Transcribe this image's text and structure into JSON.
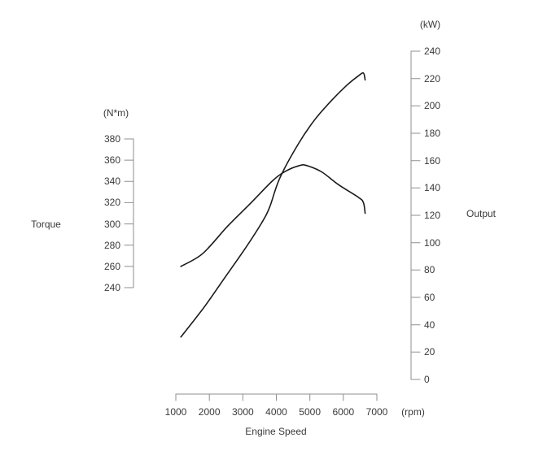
{
  "chart_data": {
    "type": "line",
    "title": "",
    "x_axis": {
      "label": "Engine Speed",
      "unit": "(rpm)",
      "range": [
        1000,
        7000
      ],
      "ticks": [
        1000,
        2000,
        3000,
        4000,
        5000,
        6000,
        7000
      ]
    },
    "y_left": {
      "label": "Torque",
      "unit": "(N*m)",
      "range": [
        240,
        380
      ],
      "ticks": [
        380,
        360,
        340,
        320,
        300,
        280,
        260,
        240
      ]
    },
    "y_right": {
      "label": "Output",
      "unit": "(kW)",
      "range": [
        0,
        240
      ],
      "ticks": [
        240,
        220,
        200,
        180,
        160,
        140,
        120,
        100,
        80,
        60,
        40,
        20,
        0
      ]
    },
    "grid": false,
    "legend": "none",
    "series": [
      {
        "name": "Torque",
        "axis": "left",
        "unit": "N*m",
        "points": [
          [
            1150,
            260
          ],
          [
            1800,
            272
          ],
          [
            2550,
            298
          ],
          [
            3250,
            320
          ],
          [
            3900,
            341
          ],
          [
            4300,
            350
          ],
          [
            4700,
            355
          ],
          [
            4900,
            355
          ],
          [
            5350,
            349
          ],
          [
            5850,
            337
          ],
          [
            6450,
            325
          ],
          [
            6600,
            320
          ],
          [
            6650,
            310
          ]
        ]
      },
      {
        "name": "Output",
        "axis": "right",
        "unit": "kW",
        "points": [
          [
            1150,
            31
          ],
          [
            1850,
            53
          ],
          [
            2450,
            74
          ],
          [
            3050,
            95
          ],
          [
            3550,
            114
          ],
          [
            3800,
            126
          ],
          [
            4100,
            147
          ],
          [
            4650,
            172
          ],
          [
            5150,
            190
          ],
          [
            5650,
            204
          ],
          [
            6100,
            215
          ],
          [
            6450,
            222
          ],
          [
            6600,
            224
          ],
          [
            6650,
            219
          ]
        ]
      }
    ],
    "colors": {
      "curve": "#1a1a1a",
      "axis": "#8f8f8f",
      "text": "#3a3a3a",
      "background": "#ffffff"
    }
  }
}
